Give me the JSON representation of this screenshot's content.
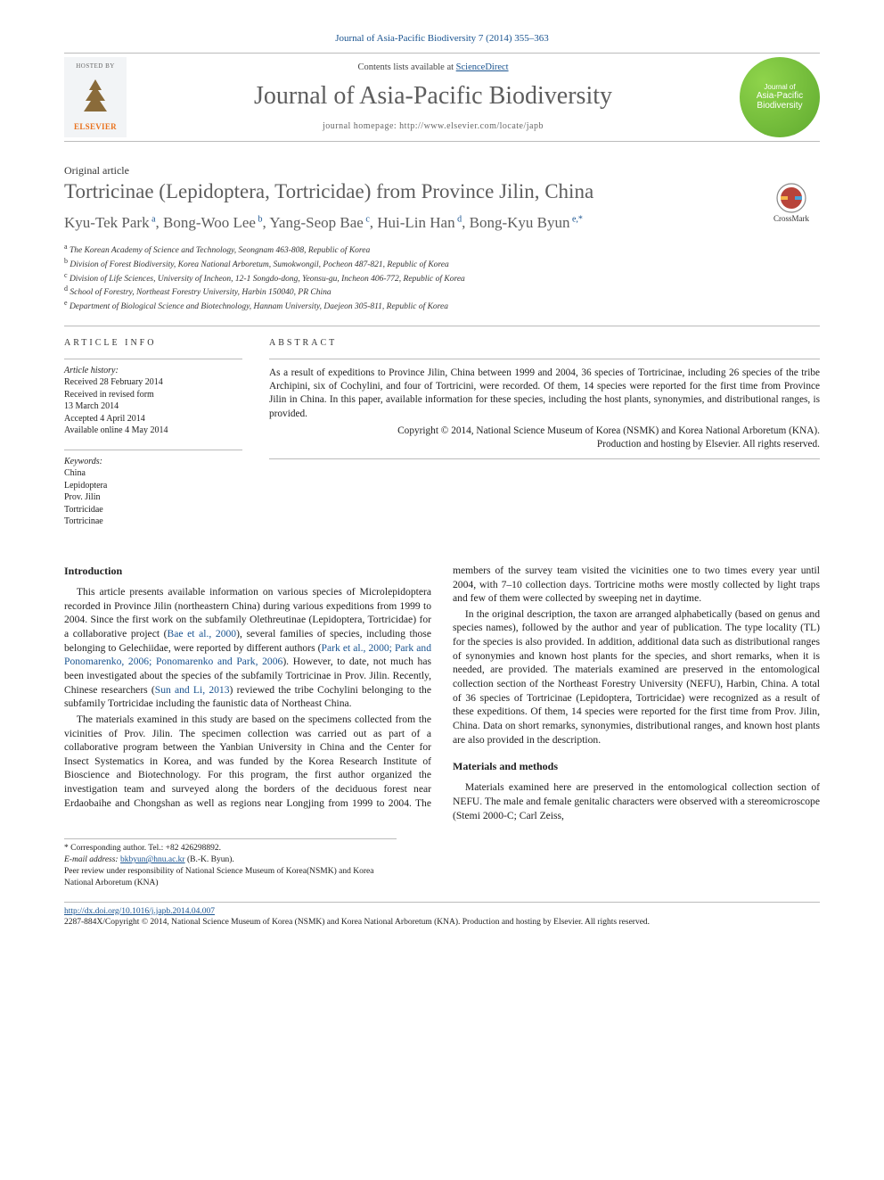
{
  "citation": "Journal of Asia-Pacific Biodiversity 7 (2014) 355–363",
  "masthead": {
    "hosted": "HOSTED BY",
    "elsevier": "ELSEVIER",
    "contents_prefix": "Contents lists available at ",
    "contents_link": "ScienceDirect",
    "journal": "Journal of Asia-Pacific Biodiversity",
    "homepage": "journal homepage: http://www.elsevier.com/locate/japb",
    "badge_line1": "Journal of",
    "badge_line2": "Asia-Pacific",
    "badge_line3": "Biodiversity"
  },
  "article_type": "Original article",
  "title": "Tortricinae (Lepidoptera, Tortricidae) from Province Jilin, China",
  "crossmark": "CrossMark",
  "authors_html": "Kyu-Tek Park",
  "authors": [
    {
      "name": "Kyu-Tek Park",
      "aff": "a"
    },
    {
      "name": "Bong-Woo Lee",
      "aff": "b"
    },
    {
      "name": "Yang-Seop Bae",
      "aff": "c"
    },
    {
      "name": "Hui-Lin Han",
      "aff": "d"
    },
    {
      "name": "Bong-Kyu Byun",
      "aff": "e,*"
    }
  ],
  "affiliations": {
    "a": "The Korean Academy of Science and Technology, Seongnam 463-808, Republic of Korea",
    "b": "Division of Forest Biodiversity, Korea National Arboretum, Sumokwongil, Pocheon 487-821, Republic of Korea",
    "c": "Division of Life Sciences, University of Incheon, 12-1 Songdo-dong, Yeonsu-gu, Incheon 406-772, Republic of Korea",
    "d": "School of Forestry, Northeast Forestry University, Harbin 150040, PR China",
    "e": "Department of Biological Science and Biotechnology, Hannam University, Daejeon 305-811, Republic of Korea"
  },
  "ai": {
    "heading": "ARTICLE INFO",
    "history_head": "Article history:",
    "history": [
      "Received 28 February 2014",
      "Received in revised form",
      "13 March 2014",
      "Accepted 4 April 2014",
      "Available online 4 May 2014"
    ],
    "keywords_head": "Keywords:",
    "keywords": [
      "China",
      "Lepidoptera",
      "Prov. Jilin",
      "Tortricidae",
      "Tortricinae"
    ]
  },
  "abstract": {
    "heading": "ABSTRACT",
    "text": "As a result of expeditions to Province Jilin, China between 1999 and 2004, 36 species of Tortricinae, including 26 species of the tribe Archipini, six of Cochylini, and four of Tortricini, were recorded. Of them, 14 species were reported for the first time from Province Jilin in China. In this paper, available information for these species, including the host plants, synonymies, and distributional ranges, is provided.",
    "copyright": "Copyright © 2014, National Science Museum of Korea (NSMK) and Korea National Arboretum (KNA).",
    "production": "Production and hosting by Elsevier. All rights reserved."
  },
  "sections": {
    "intro_head": "Introduction",
    "intro_p1a": "This article presents available information on various species of Microlepidoptera recorded in Province Jilin (northeastern China) during various expeditions from 1999 to 2004. Since the first work on the subfamily Olethreutinae (Lepidoptera, Tortricidae) for a collaborative project (",
    "intro_ref1": "Bae et al., 2000",
    "intro_p1b": "), several families of species, including those belonging to Gelechiidae, were reported by different authors (",
    "intro_ref2": "Park et al., 2000; Park and Ponomarenko, 2006; Ponomarenko and Park, 2006",
    "intro_p1c": "). However, to date, not much has been investigated about the species of the subfamily Tortricinae in Prov. Jilin. Recently, Chinese researchers (",
    "intro_ref3": "Sun and Li, 2013",
    "intro_p1d": ") reviewed the tribe Cochylini belonging to the subfamily Tortricidae including the faunistic data of Northeast China.",
    "intro_p2": "The materials examined in this study are based on the specimens collected from the vicinities of Prov. Jilin. The specimen collection was carried out as part of a collaborative program between the Yanbian University in China and the Center for Insect Systematics in Korea, and was funded by the Korea Research Institute of Bioscience and Biotechnology. For this program, the first author organized the investigation team and surveyed along the borders of the deciduous forest near Erdaobaihe and Chongshan as well as regions near Longjing from 1999 to 2004. The members of the survey team visited the vicinities one to two times every year until 2004, with 7–10 collection days. Tortricine moths were mostly collected by light traps and few of them were collected by sweeping net in daytime.",
    "intro_p3": "In the original description, the taxon are arranged alphabetically (based on genus and species names), followed by the author and year of publication. The type locality (TL) for the species is also provided. In addition, additional data such as distributional ranges of synonymies and known host plants for the species, and short remarks, when it is needed, are provided. The materials examined are preserved in the entomological collection section of the Northeast Forestry University (NEFU), Harbin, China. A total of 36 species of Tortricinae (Lepidoptera, Tortricidae) were recognized as a result of these expeditions. Of them, 14 species were reported for the first time from Prov. Jilin, China. Data on short remarks, synonymies, distributional ranges, and known host plants are also provided in the description.",
    "mm_head": "Materials and methods",
    "mm_p1": "Materials examined here are preserved in the entomological collection section of NEFU. The male and female genitalic characters were observed with a stereomicroscope (Stemi 2000-C; Carl Zeiss,"
  },
  "footnotes": {
    "corresp": "* Corresponding author. Tel.: +82 426298892.",
    "email_label": "E-mail address: ",
    "email": "bkbyun@hnu.ac.kr",
    "email_who": " (B.-K. Byun).",
    "peer": "Peer review under responsibility of National Science Museum of Korea(NSMK) and Korea National Arboretum (KNA)"
  },
  "footer": {
    "doi": "http://dx.doi.org/10.1016/j.japb.2014.04.007",
    "copyright": "2287-884X/Copyright © 2014, National Science Museum of Korea (NSMK) and Korea National Arboretum (KNA). Production and hosting by Elsevier. All rights reserved."
  },
  "colors": {
    "link": "#1a5490",
    "heading": "#5d5d5d",
    "elsevier": "#e9711c",
    "badge_light": "#8fd44b",
    "badge_dark": "#5faa2f"
  }
}
